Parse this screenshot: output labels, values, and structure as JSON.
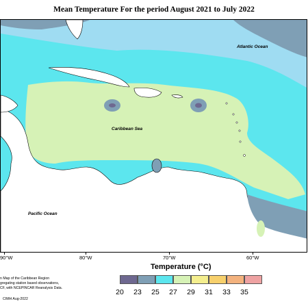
{
  "title": "Mean Temperature For the period August 2021 to July 2022",
  "map_labels": {
    "atlantic": "Atlantic Ocean",
    "caribbean": "Caribbean Sea",
    "pacific": "Pacific Ocean"
  },
  "longitude_ticks": [
    "90°W",
    "80°W",
    "70°W",
    "60°W"
  ],
  "legend": {
    "title": "Temperature (°C)",
    "values": [
      "20",
      "23",
      "25",
      "27",
      "29",
      "31",
      "33",
      "35"
    ],
    "colors": [
      "#6e6890",
      "#7f9fb5",
      "#5ce6ee",
      "#d6f2b6",
      "#f4ee8e",
      "#f7d06c",
      "#f3b27e",
      "#eea2a2"
    ]
  },
  "footer": {
    "line1": "n Map of the Caribbean Region",
    "line2": "gregating station based observations,",
    "line3": "CF, with NCEPINCAR Reanalysis Data.",
    "credit": "CIMH Aug-2022"
  }
}
